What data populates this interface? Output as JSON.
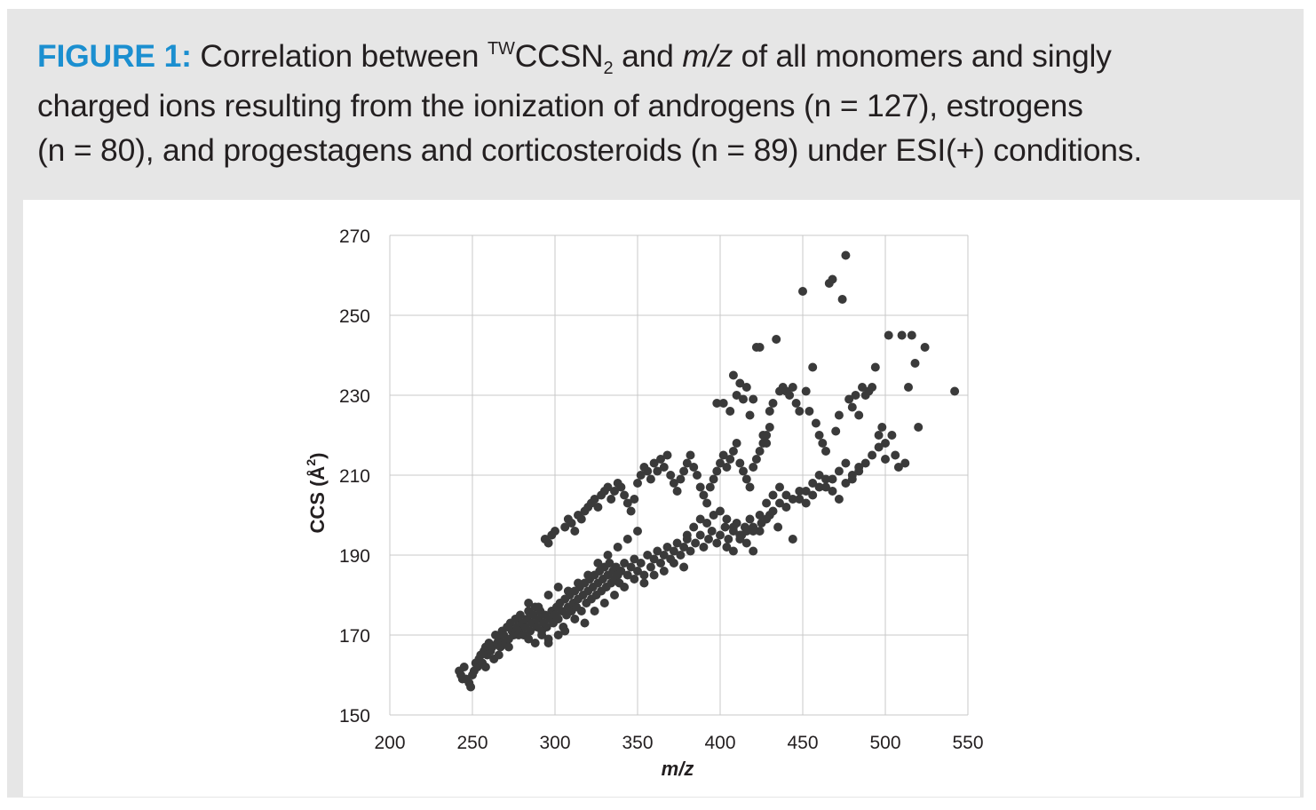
{
  "caption": {
    "label": "FIGURE 1:",
    "line1_part1": "Correlation between ",
    "sup_tw": "TW",
    "ccs": "CCSN",
    "sub_2": "2",
    "line1_part2": " and ",
    "mz_italic": "m/z",
    "line1_part3": " of all monomers and singly",
    "line2": "charged ions resulting from the ionization of androgens (n = 127), estrogens",
    "line3": "(n = 80), and progestagens and corticosteroids (n = 89) under ESI(+) conditions."
  },
  "colors": {
    "accent": "#1b8fd0",
    "marker": "#3a3a3a",
    "grid": "#c8c8c8",
    "text": "#231f20"
  },
  "chart_data": {
    "type": "scatter",
    "title": "",
    "xlabel": "m/z",
    "ylabel": "CCS (Å²)",
    "ylabel_base": "CCS (Å",
    "ylabel_sup": "2",
    "ylabel_close": ")",
    "xlim": [
      200,
      550
    ],
    "ylim": [
      150,
      270
    ],
    "xticks": [
      200,
      250,
      300,
      350,
      400,
      450,
      500,
      550
    ],
    "yticks": [
      150,
      170,
      190,
      210,
      230,
      250,
      270
    ],
    "grid": true,
    "points": [
      [
        242,
        161
      ],
      [
        243,
        160
      ],
      [
        244,
        159
      ],
      [
        245,
        162
      ],
      [
        248,
        158
      ],
      [
        249,
        157
      ],
      [
        250,
        160
      ],
      [
        251,
        161
      ],
      [
        252,
        163
      ],
      [
        253,
        162
      ],
      [
        254,
        164
      ],
      [
        255,
        165
      ],
      [
        256,
        163
      ],
      [
        257,
        166
      ],
      [
        258,
        167
      ],
      [
        259,
        165
      ],
      [
        260,
        168
      ],
      [
        261,
        166
      ],
      [
        262,
        167
      ],
      [
        263,
        164
      ],
      [
        264,
        170
      ],
      [
        265,
        168
      ],
      [
        266,
        169
      ],
      [
        267,
        167
      ],
      [
        268,
        171
      ],
      [
        269,
        170
      ],
      [
        270,
        168
      ],
      [
        271,
        172
      ],
      [
        272,
        169
      ],
      [
        273,
        173
      ],
      [
        274,
        171
      ],
      [
        275,
        170
      ],
      [
        276,
        174
      ],
      [
        277,
        172
      ],
      [
        278,
        171
      ],
      [
        279,
        175
      ],
      [
        280,
        173
      ],
      [
        281,
        170
      ],
      [
        282,
        172
      ],
      [
        283,
        174
      ],
      [
        284,
        176
      ],
      [
        285,
        171
      ],
      [
        286,
        173
      ],
      [
        287,
        175
      ],
      [
        288,
        177
      ],
      [
        289,
        172
      ],
      [
        290,
        174
      ],
      [
        291,
        176
      ],
      [
        292,
        170
      ],
      [
        293,
        173
      ],
      [
        294,
        175
      ],
      [
        295,
        172
      ],
      [
        296,
        169
      ],
      [
        297,
        174
      ],
      [
        298,
        176
      ],
      [
        299,
        173
      ],
      [
        300,
        175
      ],
      [
        301,
        177
      ],
      [
        302,
        174
      ],
      [
        303,
        178
      ],
      [
        304,
        176
      ],
      [
        305,
        172
      ],
      [
        306,
        179
      ],
      [
        307,
        175
      ],
      [
        308,
        177
      ],
      [
        309,
        180
      ],
      [
        310,
        176
      ],
      [
        311,
        178
      ],
      [
        312,
        181
      ],
      [
        313,
        177
      ],
      [
        314,
        179
      ],
      [
        315,
        182
      ],
      [
        316,
        176
      ],
      [
        317,
        180
      ],
      [
        318,
        183
      ],
      [
        319,
        178
      ],
      [
        320,
        181
      ],
      [
        321,
        184
      ],
      [
        322,
        179
      ],
      [
        323,
        182
      ],
      [
        324,
        185
      ],
      [
        325,
        180
      ],
      [
        326,
        183
      ],
      [
        327,
        186
      ],
      [
        328,
        181
      ],
      [
        329,
        184
      ],
      [
        330,
        187
      ],
      [
        331,
        182
      ],
      [
        332,
        185
      ],
      [
        333,
        188
      ],
      [
        334,
        183
      ],
      [
        335,
        186
      ],
      [
        336,
        184
      ],
      [
        337,
        187
      ],
      [
        338,
        185
      ],
      [
        339,
        183
      ],
      [
        340,
        186
      ],
      [
        342,
        188
      ],
      [
        344,
        185
      ],
      [
        346,
        187
      ],
      [
        348,
        189
      ],
      [
        350,
        186
      ],
      [
        352,
        188
      ],
      [
        354,
        185
      ],
      [
        356,
        190
      ],
      [
        358,
        187
      ],
      [
        360,
        189
      ],
      [
        362,
        191
      ],
      [
        364,
        188
      ],
      [
        366,
        190
      ],
      [
        368,
        192
      ],
      [
        370,
        189
      ],
      [
        372,
        191
      ],
      [
        374,
        193
      ],
      [
        376,
        190
      ],
      [
        378,
        192
      ],
      [
        380,
        194
      ],
      [
        382,
        191
      ],
      [
        385,
        193
      ],
      [
        388,
        195
      ],
      [
        390,
        192
      ],
      [
        393,
        194
      ],
      [
        395,
        196
      ],
      [
        398,
        193
      ],
      [
        400,
        195
      ],
      [
        403,
        197
      ],
      [
        405,
        194
      ],
      [
        408,
        196
      ],
      [
        410,
        198
      ],
      [
        413,
        195
      ],
      [
        415,
        197
      ],
      [
        418,
        199
      ],
      [
        420,
        196
      ],
      [
        425,
        198
      ],
      [
        430,
        200
      ],
      [
        435,
        197
      ],
      [
        246,
        159
      ],
      [
        258,
        162
      ],
      [
        266,
        165
      ],
      [
        272,
        167
      ],
      [
        278,
        170
      ],
      [
        284,
        169
      ],
      [
        288,
        168
      ],
      [
        292,
        171
      ],
      [
        296,
        168
      ],
      [
        302,
        170
      ],
      [
        306,
        171
      ],
      [
        312,
        174
      ],
      [
        318,
        173
      ],
      [
        324,
        176
      ],
      [
        330,
        178
      ],
      [
        336,
        180
      ],
      [
        342,
        182
      ],
      [
        348,
        184
      ],
      [
        354,
        183
      ],
      [
        360,
        185
      ],
      [
        366,
        186
      ],
      [
        372,
        188
      ],
      [
        378,
        187
      ],
      [
        284,
        178
      ],
      [
        290,
        177
      ],
      [
        296,
        180
      ],
      [
        302,
        182
      ],
      [
        308,
        181
      ],
      [
        314,
        183
      ],
      [
        320,
        185
      ],
      [
        326,
        188
      ],
      [
        332,
        190
      ],
      [
        338,
        192
      ],
      [
        344,
        194
      ],
      [
        350,
        196
      ],
      [
        294,
        194
      ],
      [
        296,
        193
      ],
      [
        298,
        195
      ],
      [
        300,
        196
      ],
      [
        306,
        197
      ],
      [
        308,
        199
      ],
      [
        310,
        198
      ],
      [
        312,
        196
      ],
      [
        314,
        200
      ],
      [
        316,
        199
      ],
      [
        318,
        201
      ],
      [
        320,
        202
      ],
      [
        322,
        203
      ],
      [
        324,
        204
      ],
      [
        326,
        202
      ],
      [
        328,
        205
      ],
      [
        330,
        206
      ],
      [
        332,
        207
      ],
      [
        334,
        204
      ],
      [
        336,
        206
      ],
      [
        338,
        208
      ],
      [
        340,
        207
      ],
      [
        342,
        205
      ],
      [
        344,
        203
      ],
      [
        346,
        201
      ],
      [
        348,
        204
      ],
      [
        350,
        208
      ],
      [
        352,
        210
      ],
      [
        354,
        212
      ],
      [
        356,
        211
      ],
      [
        358,
        209
      ],
      [
        360,
        213
      ],
      [
        362,
        211
      ],
      [
        364,
        214
      ],
      [
        366,
        212
      ],
      [
        368,
        215
      ],
      [
        370,
        210
      ],
      [
        372,
        208
      ],
      [
        374,
        206
      ],
      [
        376,
        209
      ],
      [
        378,
        211
      ],
      [
        380,
        213
      ],
      [
        382,
        215
      ],
      [
        384,
        212
      ],
      [
        386,
        210
      ],
      [
        388,
        207
      ],
      [
        390,
        205
      ],
      [
        392,
        203
      ],
      [
        394,
        207
      ],
      [
        396,
        209
      ],
      [
        398,
        211
      ],
      [
        400,
        213
      ],
      [
        402,
        215
      ],
      [
        404,
        212
      ],
      [
        406,
        214
      ],
      [
        408,
        216
      ],
      [
        410,
        218
      ],
      [
        412,
        213
      ],
      [
        414,
        211
      ],
      [
        416,
        209
      ],
      [
        418,
        207
      ],
      [
        420,
        212
      ],
      [
        422,
        214
      ],
      [
        424,
        216
      ],
      [
        426,
        218
      ],
      [
        428,
        220
      ],
      [
        430,
        222
      ],
      [
        398,
        228
      ],
      [
        402,
        228
      ],
      [
        406,
        226
      ],
      [
        408,
        235
      ],
      [
        410,
        230
      ],
      [
        412,
        233
      ],
      [
        414,
        229
      ],
      [
        416,
        232
      ],
      [
        418,
        225
      ],
      [
        420,
        229
      ],
      [
        422,
        242
      ],
      [
        424,
        242
      ],
      [
        426,
        220
      ],
      [
        428,
        218
      ],
      [
        430,
        226
      ],
      [
        432,
        228
      ],
      [
        434,
        244
      ],
      [
        436,
        231
      ],
      [
        438,
        232
      ],
      [
        440,
        231
      ],
      [
        442,
        230
      ],
      [
        444,
        232
      ],
      [
        446,
        228
      ],
      [
        448,
        226
      ],
      [
        450,
        256
      ],
      [
        452,
        231
      ],
      [
        454,
        226
      ],
      [
        456,
        237
      ],
      [
        458,
        223
      ],
      [
        460,
        220
      ],
      [
        462,
        218
      ],
      [
        464,
        216
      ],
      [
        466,
        258
      ],
      [
        468,
        259
      ],
      [
        470,
        221
      ],
      [
        472,
        225
      ],
      [
        474,
        254
      ],
      [
        476,
        265
      ],
      [
        478,
        229
      ],
      [
        480,
        227
      ],
      [
        482,
        230
      ],
      [
        484,
        225
      ],
      [
        486,
        232
      ],
      [
        488,
        230
      ],
      [
        490,
        231
      ],
      [
        492,
        232
      ],
      [
        494,
        237
      ],
      [
        496,
        220
      ],
      [
        498,
        222
      ],
      [
        500,
        218
      ],
      [
        502,
        245
      ],
      [
        504,
        220
      ],
      [
        506,
        215
      ],
      [
        508,
        212
      ],
      [
        510,
        245
      ],
      [
        512,
        213
      ],
      [
        514,
        232
      ],
      [
        516,
        245
      ],
      [
        518,
        238
      ],
      [
        520,
        222
      ],
      [
        524,
        242
      ],
      [
        542,
        231
      ],
      [
        380,
        195
      ],
      [
        384,
        197
      ],
      [
        388,
        199
      ],
      [
        392,
        198
      ],
      [
        396,
        200
      ],
      [
        400,
        201
      ],
      [
        404,
        199
      ],
      [
        408,
        197
      ],
      [
        412,
        195
      ],
      [
        416,
        193
      ],
      [
        420,
        191
      ],
      [
        424,
        196
      ],
      [
        428,
        199
      ],
      [
        432,
        201
      ],
      [
        436,
        203
      ],
      [
        440,
        205
      ],
      [
        444,
        194
      ],
      [
        448,
        204
      ],
      [
        452,
        206
      ],
      [
        456,
        208
      ],
      [
        460,
        210
      ],
      [
        464,
        207
      ],
      [
        468,
        209
      ],
      [
        472,
        211
      ],
      [
        476,
        213
      ],
      [
        480,
        209
      ],
      [
        484,
        211
      ],
      [
        488,
        213
      ],
      [
        492,
        215
      ],
      [
        496,
        217
      ],
      [
        500,
        214
      ],
      [
        404,
        192
      ],
      [
        408,
        191
      ],
      [
        412,
        194
      ],
      [
        416,
        196
      ],
      [
        420,
        197
      ],
      [
        424,
        200
      ],
      [
        428,
        203
      ],
      [
        432,
        205
      ],
      [
        436,
        207
      ],
      [
        440,
        202
      ],
      [
        444,
        204
      ],
      [
        448,
        206
      ],
      [
        452,
        203
      ],
      [
        456,
        205
      ],
      [
        460,
        207
      ],
      [
        464,
        209
      ],
      [
        468,
        206
      ],
      [
        472,
        204
      ],
      [
        476,
        208
      ],
      [
        480,
        210
      ],
      [
        484,
        212
      ]
    ]
  }
}
